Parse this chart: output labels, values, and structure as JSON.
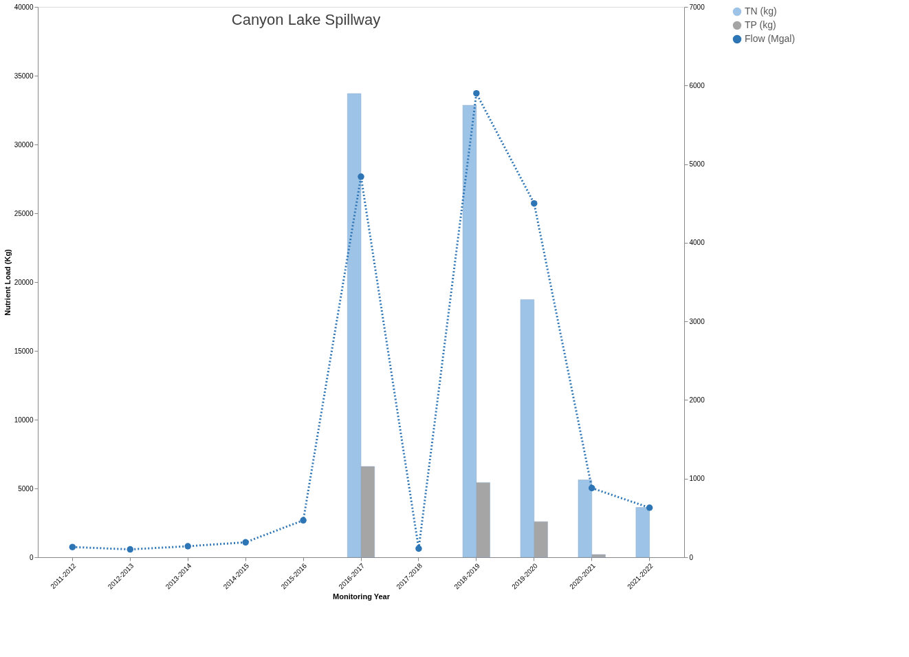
{
  "chart_data": {
    "type": "bar",
    "title": "Canyon Lake Spillway",
    "xlabel": "Monitoring Year",
    "ylabel": "Nutrient Load (Kg)",
    "categories": [
      "2011-2012",
      "2012-2013",
      "2013-2014",
      "2014-2015",
      "2015-2016",
      "2016-2017",
      "2017-2018",
      "2018-2019",
      "2019-2020",
      "2020-2021",
      "2021-2022"
    ],
    "series": [
      {
        "name": "TN (kg)",
        "color": "#9dc3e6",
        "values": [
          null,
          null,
          null,
          null,
          null,
          33700,
          null,
          32850,
          18730,
          5620,
          3620
        ]
      },
      {
        "name": "TP (kg)",
        "color": "#a5a5a5",
        "values": [
          null,
          null,
          null,
          null,
          null,
          6600,
          null,
          5430,
          2590,
          200,
          null
        ]
      },
      {
        "name": "Flow (Mgal)",
        "type": "line",
        "axis": "y2",
        "color": "#2e75b6",
        "marker": "circle",
        "line_style": "dotted",
        "values": [
          130,
          100,
          140,
          190,
          470,
          4840,
          110,
          5900,
          4500,
          880,
          630
        ]
      }
    ],
    "ylim": [
      0,
      40000
    ],
    "yticks": [
      0,
      5000,
      10000,
      15000,
      20000,
      25000,
      30000,
      35000,
      40000
    ],
    "y2lim": [
      0,
      7000
    ],
    "y2ticks": [
      0,
      1000,
      2000,
      3000,
      4000,
      5000,
      6000,
      7000
    ],
    "grid": false,
    "legend": "right"
  }
}
